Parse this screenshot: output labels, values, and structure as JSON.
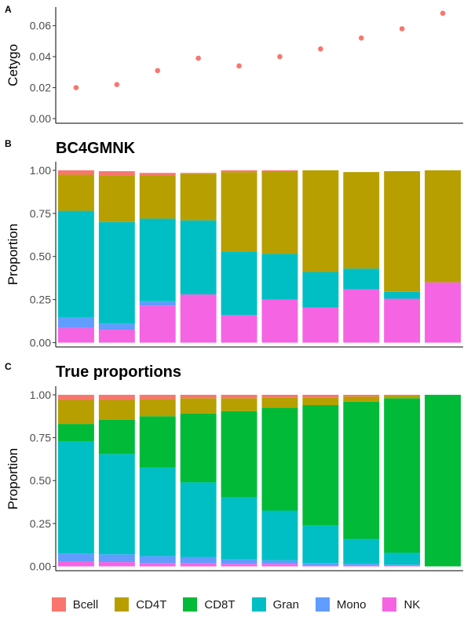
{
  "panels": {
    "a": {
      "tag": "A"
    },
    "b": {
      "tag": "B"
    },
    "c": {
      "tag": "C"
    }
  },
  "components": [
    "Bcell",
    "CD4T",
    "CD8T",
    "Gran",
    "Mono",
    "NK"
  ],
  "colors": {
    "Bcell": "#F8766D",
    "CD4T": "#B79F00",
    "CD8T": "#00BA38",
    "Gran": "#00BFC4",
    "Mono": "#619CFF",
    "NK": "#F564E3"
  },
  "chart_data": [
    {
      "type": "scatter",
      "title": "",
      "xlabel": "",
      "ylabel": "Cetygo",
      "ylim": [
        -0.003,
        0.072
      ],
      "yticks": [
        0.0,
        0.02,
        0.04,
        0.06
      ],
      "ytick_labels": [
        "0.00",
        "0.02",
        "0.04",
        "0.06"
      ],
      "x": [
        1,
        2,
        3,
        4,
        5,
        6,
        7,
        8,
        9,
        10
      ],
      "y": [
        0.02,
        0.022,
        0.031,
        0.039,
        0.034,
        0.04,
        0.045,
        0.052,
        0.058,
        0.068
      ],
      "point_color": "#F8766D",
      "grid": false
    },
    {
      "type": "bar",
      "stacked": true,
      "title": "BC4GMNK",
      "xlabel": "",
      "ylabel": "Proportion",
      "ylim": [
        -0.025,
        1.05
      ],
      "yticks": [
        0.0,
        0.25,
        0.5,
        0.75,
        1.0
      ],
      "ytick_labels": [
        "0.00",
        "0.25",
        "0.50",
        "0.75",
        "1.00"
      ],
      "grid": false,
      "stack_order": [
        "NK",
        "Mono",
        "Gran",
        "CD8T",
        "CD4T",
        "Bcell"
      ],
      "series": [
        {
          "name": "Bcell",
          "values": [
            0.025,
            0.025,
            0.015,
            0.005,
            0.01,
            0.005,
            0,
            0,
            0,
            0
          ]
        },
        {
          "name": "CD4T",
          "values": [
            0.21,
            0.27,
            0.25,
            0.27,
            0.46,
            0.48,
            0.59,
            0.56,
            0.7,
            0.65
          ]
        },
        {
          "name": "CD8T",
          "values": [
            0,
            0,
            0,
            0,
            0,
            0,
            0,
            0,
            0,
            0
          ]
        },
        {
          "name": "Gran",
          "values": [
            0.62,
            0.59,
            0.48,
            0.43,
            0.37,
            0.265,
            0.205,
            0.12,
            0.04,
            0
          ]
        },
        {
          "name": "Mono",
          "values": [
            0.06,
            0.035,
            0.025,
            0,
            0,
            0,
            0,
            0,
            0,
            0
          ]
        },
        {
          "name": "NK",
          "values": [
            0.085,
            0.075,
            0.215,
            0.28,
            0.16,
            0.25,
            0.205,
            0.31,
            0.255,
            0.35
          ]
        }
      ]
    },
    {
      "type": "bar",
      "stacked": true,
      "title": "True proportions",
      "xlabel": "",
      "ylabel": "Proportion",
      "ylim": [
        -0.025,
        1.05
      ],
      "yticks": [
        0.0,
        0.25,
        0.5,
        0.75,
        1.0
      ],
      "ytick_labels": [
        "0.00",
        "0.25",
        "0.50",
        "0.75",
        "1.00"
      ],
      "grid": false,
      "stack_order": [
        "NK",
        "Mono",
        "Gran",
        "CD8T",
        "CD4T",
        "Bcell"
      ],
      "series": [
        {
          "name": "Bcell",
          "values": [
            0.03,
            0.03,
            0.025,
            0.02,
            0.02,
            0.015,
            0.015,
            0.01,
            0.005,
            0
          ]
        },
        {
          "name": "CD4T",
          "values": [
            0.14,
            0.115,
            0.1,
            0.09,
            0.075,
            0.06,
            0.045,
            0.03,
            0.015,
            0
          ]
        },
        {
          "name": "CD8T",
          "values": [
            0.1,
            0.2,
            0.3,
            0.4,
            0.5,
            0.6,
            0.7,
            0.8,
            0.9,
            1.0
          ]
        },
        {
          "name": "Gran",
          "values": [
            0.655,
            0.585,
            0.515,
            0.435,
            0.365,
            0.29,
            0.22,
            0.145,
            0.07,
            0
          ]
        },
        {
          "name": "Mono",
          "values": [
            0.045,
            0.045,
            0.04,
            0.035,
            0.025,
            0.02,
            0.015,
            0.01,
            0.005,
            0
          ]
        },
        {
          "name": "NK",
          "values": [
            0.03,
            0.025,
            0.02,
            0.02,
            0.015,
            0.015,
            0.005,
            0.005,
            0.005,
            0
          ]
        }
      ]
    }
  ]
}
